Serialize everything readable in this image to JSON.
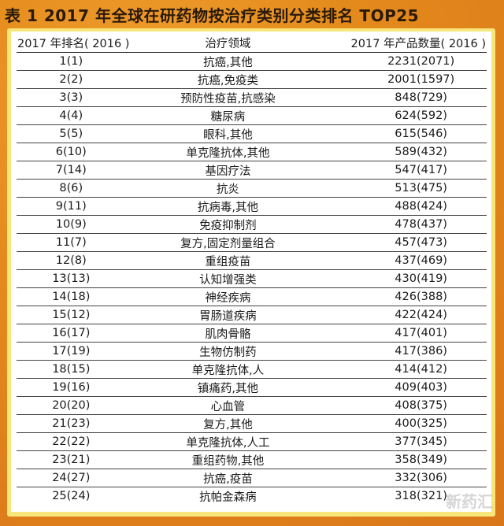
{
  "title": "表 1   2017 年全球在研药物按治疗类别分类排名 TOP25",
  "table": {
    "headers": [
      "2017 年排名( 2016 )",
      "治疗领域",
      "2017 年产品数量( 2016 )"
    ],
    "rows": [
      [
        "1(1)",
        "抗癌,其他",
        "2231(2071)"
      ],
      [
        "2(2)",
        "抗癌,免疫类",
        "2001(1597)"
      ],
      [
        "3(3)",
        "预防性疫苗,抗感染",
        "848(729)"
      ],
      [
        "4(4)",
        "糖尿病",
        "624(592)"
      ],
      [
        "5(5)",
        "眼科,其他",
        "615(546)"
      ],
      [
        "6(10)",
        "单克隆抗体,其他",
        "589(432)"
      ],
      [
        "7(14)",
        "基因疗法",
        "547(417)"
      ],
      [
        "8(6)",
        "抗炎",
        "513(475)"
      ],
      [
        "9(11)",
        "抗病毒,其他",
        "488(424)"
      ],
      [
        "10(9)",
        "免疫抑制剂",
        "478(437)"
      ],
      [
        "11(7)",
        "复方,固定剂量组合",
        "457(473)"
      ],
      [
        "12(8)",
        "重组疫苗",
        "437(469)"
      ],
      [
        "13(13)",
        "认知增强类",
        "430(419)"
      ],
      [
        "14(18)",
        "神经疾病",
        "426(388)"
      ],
      [
        "15(12)",
        "胃肠道疾病",
        "422(424)"
      ],
      [
        "16(17)",
        "肌肉骨骼",
        "417(401)"
      ],
      [
        "17(19)",
        "生物仿制药",
        "417(386)"
      ],
      [
        "18(15)",
        "单克隆抗体,人",
        "414(412)"
      ],
      [
        "19(16)",
        "镇痛药,其他",
        "409(403)"
      ],
      [
        "20(20)",
        "心血管",
        "408(375)"
      ],
      [
        "21(23)",
        "复方,其他",
        "400(325)"
      ],
      [
        "22(22)",
        "单克隆抗体,人工",
        "377(345)"
      ],
      [
        "23(21)",
        "重组药物,其他",
        "358(349)"
      ],
      [
        "24(27)",
        "抗癌,疫苗",
        "332(306)"
      ],
      [
        "25(24)",
        "抗帕金森病",
        "318(321)"
      ]
    ]
  },
  "watermark": "新药汇",
  "colors": {
    "background": "#e48a1c",
    "border": "#f7e67a"
  }
}
